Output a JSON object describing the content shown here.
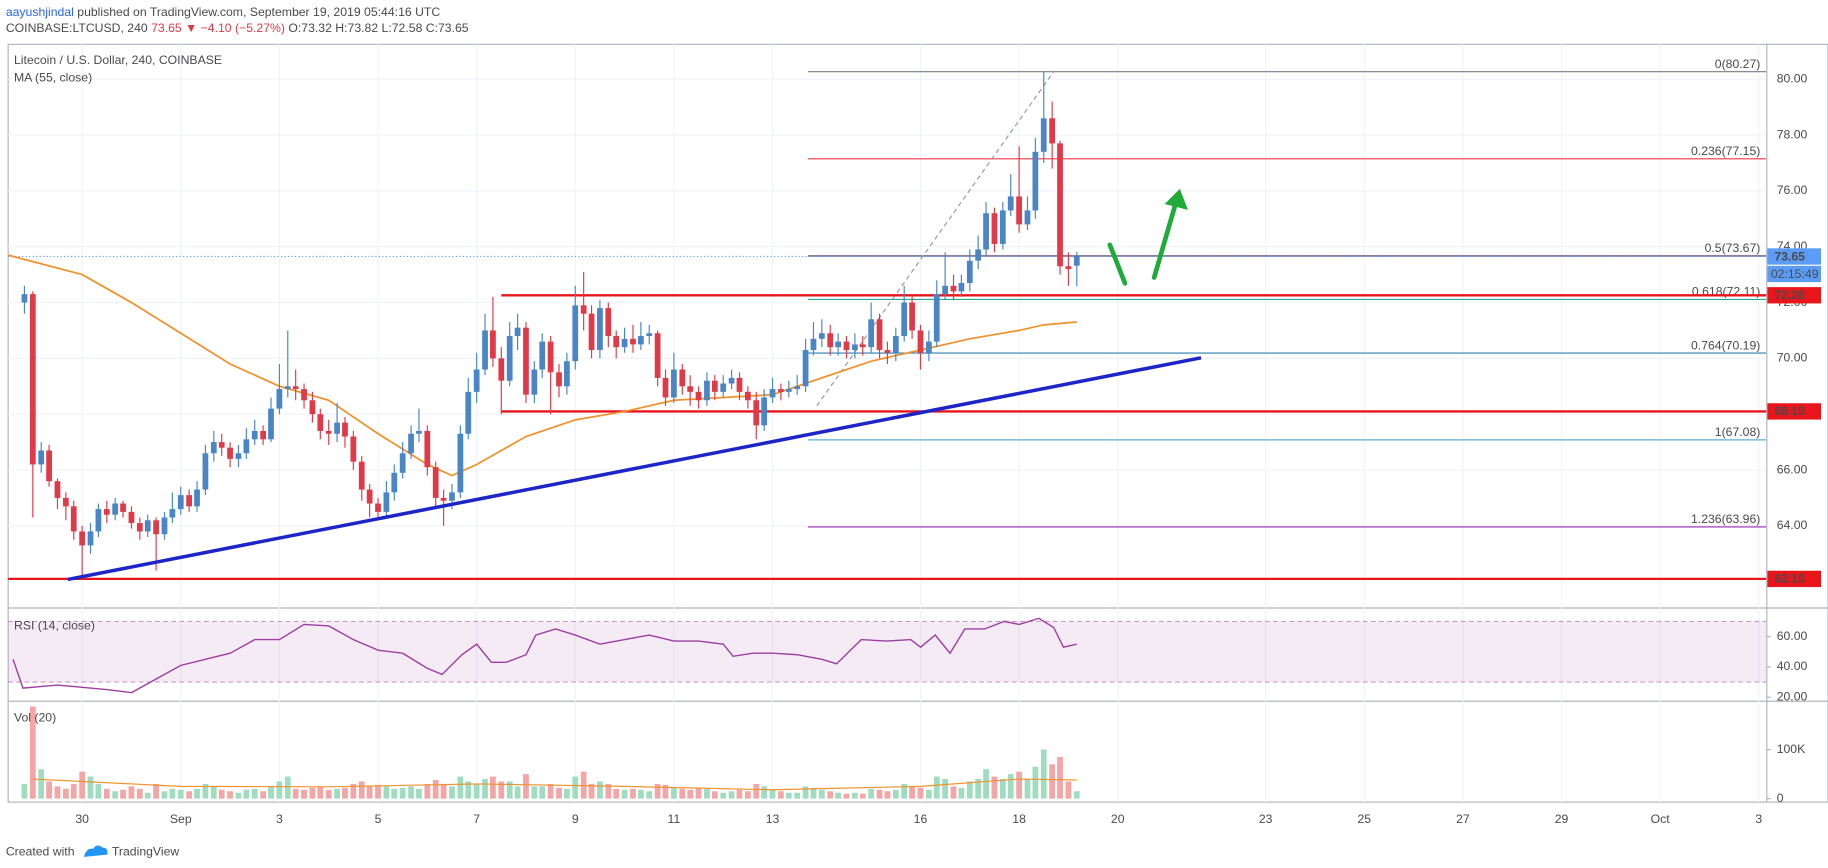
{
  "chart_data": {
    "type": "candlestick",
    "header": {
      "author": "aayushjindal",
      "published": " published on TradingView.com, September 19, 2019 05:44:16 UTC",
      "symbol": "COINBASE:LTCUSD, 240",
      "change": " 73.65 ▼ −4.10 (−5.27%)",
      "ohlc": " O:73.32 H:73.82 L:72.58 C:73.65"
    },
    "title": "Litecoin / U.S. Dollar, 240, COINBASE",
    "ma_label": "MA (55, close)",
    "footer": {
      "created": "Created with",
      "brand": "TradingView"
    },
    "grid": true,
    "up_color": "#4a86c5",
    "down_color": "#e03a48",
    "xlim": [
      -3.5,
      32.15
    ],
    "xticks": [
      {
        "value": -2,
        "label": "30"
      },
      {
        "value": 0,
        "label": "Sep"
      },
      {
        "value": 2,
        "label": "3"
      },
      {
        "value": 4,
        "label": "5"
      },
      {
        "value": 6,
        "label": "7"
      },
      {
        "value": 8,
        "label": "9"
      },
      {
        "value": 10,
        "label": "11"
      },
      {
        "value": 12,
        "label": "13"
      },
      {
        "value": 15,
        "label": "16"
      },
      {
        "value": 17,
        "label": "18"
      },
      {
        "value": 19,
        "label": "20"
      },
      {
        "value": 22,
        "label": "23"
      },
      {
        "value": 24,
        "label": "25"
      },
      {
        "value": 26,
        "label": "27"
      },
      {
        "value": 28,
        "label": "29"
      },
      {
        "value": 30,
        "label": "Oct"
      },
      {
        "value": 32,
        "label": "3"
      }
    ],
    "ylim": [
      61.12,
      81.25
    ],
    "yticks": [
      {
        "value": 64,
        "label": "64.00"
      },
      {
        "value": 66,
        "label": "66.00"
      },
      {
        "value": 68,
        "label": "68.00"
      },
      {
        "value": 70,
        "label": "70.00"
      },
      {
        "value": 72,
        "label": "72.00"
      },
      {
        "value": 74,
        "label": "74.00"
      },
      {
        "value": 76,
        "label": "76.00"
      },
      {
        "value": 78,
        "label": "78.00"
      },
      {
        "value": 80,
        "label": "80.00"
      }
    ],
    "x": [
      -3.17,
      -3,
      -2.83,
      -2.67,
      -2.5,
      -2.33,
      -2.17,
      -2,
      -1.83,
      -1.67,
      -1.5,
      -1.33,
      -1.17,
      -1,
      -0.83,
      -0.67,
      -0.5,
      -0.33,
      -0.17,
      0,
      0.17,
      0.33,
      0.5,
      0.67,
      0.83,
      1,
      1.17,
      1.33,
      1.5,
      1.67,
      1.83,
      2,
      2.17,
      2.33,
      2.5,
      2.67,
      2.83,
      3,
      3.17,
      3.33,
      3.5,
      3.67,
      3.83,
      4,
      4.17,
      4.33,
      4.5,
      4.67,
      4.83,
      5,
      5.17,
      5.33,
      5.5,
      5.67,
      5.83,
      6,
      6.17,
      6.33,
      6.5,
      6.67,
      6.83,
      7,
      7.17,
      7.33,
      7.5,
      7.67,
      7.83,
      8,
      8.17,
      8.33,
      8.5,
      8.67,
      8.83,
      9,
      9.17,
      9.33,
      9.5,
      9.67,
      9.83,
      10,
      10.17,
      10.33,
      10.5,
      10.67,
      10.83,
      11,
      11.17,
      11.33,
      11.5,
      11.67,
      11.83,
      12,
      12.17,
      12.33,
      12.5,
      12.67,
      12.83,
      13,
      13.17,
      13.33,
      13.5,
      13.67,
      13.83,
      14,
      14.17,
      14.33,
      14.5,
      14.67,
      14.83,
      15,
      15.17,
      15.33,
      15.5,
      15.67,
      15.83,
      16,
      16.17,
      16.33,
      16.5,
      16.67,
      16.83,
      17,
      17.17,
      17.33,
      17.5,
      17.67,
      17.83,
      18,
      18.17
    ],
    "ohlc": [
      [
        72.0,
        72.6,
        71.6,
        72.3
      ],
      [
        72.3,
        72.4,
        64.3,
        66.2
      ],
      [
        66.2,
        67.0,
        65.9,
        66.7
      ],
      [
        66.7,
        66.9,
        65.4,
        65.6
      ],
      [
        65.6,
        65.7,
        64.6,
        65.0
      ],
      [
        65.0,
        65.2,
        64.2,
        64.7
      ],
      [
        64.7,
        64.9,
        63.5,
        63.8
      ],
      [
        63.8,
        64.0,
        62.1,
        63.3
      ],
      [
        63.3,
        64.1,
        63.0,
        63.8
      ],
      [
        63.8,
        64.8,
        63.6,
        64.6
      ],
      [
        64.6,
        64.9,
        64.1,
        64.4
      ],
      [
        64.4,
        65.0,
        64.2,
        64.8
      ],
      [
        64.8,
        64.9,
        64.3,
        64.5
      ],
      [
        64.5,
        64.7,
        63.9,
        64.1
      ],
      [
        64.1,
        64.3,
        63.5,
        63.8
      ],
      [
        63.8,
        64.4,
        63.6,
        64.2
      ],
      [
        64.2,
        64.3,
        62.4,
        63.7
      ],
      [
        63.7,
        64.5,
        63.5,
        64.3
      ],
      [
        64.3,
        65.2,
        64.1,
        64.6
      ],
      [
        64.6,
        65.4,
        64.4,
        65.1
      ],
      [
        65.1,
        65.3,
        64.5,
        64.7
      ],
      [
        64.7,
        65.6,
        64.5,
        65.3
      ],
      [
        65.3,
        66.9,
        65.1,
        66.6
      ],
      [
        66.6,
        67.4,
        66.3,
        67.0
      ],
      [
        67.0,
        67.3,
        66.5,
        66.8
      ],
      [
        66.8,
        67.0,
        66.1,
        66.4
      ],
      [
        66.4,
        66.9,
        66.1,
        66.6
      ],
      [
        66.6,
        67.5,
        66.4,
        67.1
      ],
      [
        67.1,
        67.8,
        66.9,
        67.4
      ],
      [
        67.4,
        67.6,
        66.9,
        67.1
      ],
      [
        67.1,
        68.6,
        67.0,
        68.2
      ],
      [
        68.2,
        69.8,
        68.0,
        68.9
      ],
      [
        68.9,
        71.0,
        68.6,
        69.0
      ],
      [
        69.0,
        69.6,
        68.5,
        68.9
      ],
      [
        68.9,
        69.1,
        68.2,
        68.5
      ],
      [
        68.5,
        68.8,
        67.7,
        68.0
      ],
      [
        68.0,
        68.2,
        67.1,
        67.4
      ],
      [
        67.4,
        67.8,
        66.9,
        67.3
      ],
      [
        67.3,
        68.4,
        67.0,
        67.7
      ],
      [
        67.7,
        67.9,
        66.8,
        67.2
      ],
      [
        67.2,
        67.4,
        66.0,
        66.3
      ],
      [
        66.3,
        66.5,
        64.9,
        65.3
      ],
      [
        65.3,
        65.5,
        64.3,
        64.8
      ],
      [
        64.8,
        65.0,
        64.2,
        64.5
      ],
      [
        64.5,
        65.6,
        64.3,
        65.2
      ],
      [
        65.2,
        66.2,
        64.9,
        65.9
      ],
      [
        65.9,
        67.0,
        65.7,
        66.6
      ],
      [
        66.6,
        67.6,
        66.4,
        67.3
      ],
      [
        67.3,
        68.2,
        67.0,
        67.4
      ],
      [
        67.4,
        67.6,
        65.8,
        66.1
      ],
      [
        66.1,
        66.3,
        64.6,
        65.0
      ],
      [
        65.0,
        65.3,
        64.0,
        64.9
      ],
      [
        64.9,
        65.5,
        64.6,
        65.2
      ],
      [
        65.2,
        67.6,
        65.0,
        67.3
      ],
      [
        67.3,
        69.3,
        67.1,
        68.8
      ],
      [
        68.8,
        70.2,
        68.4,
        69.6
      ],
      [
        69.6,
        71.6,
        69.4,
        71.0
      ],
      [
        71.0,
        72.2,
        69.7,
        70.0
      ],
      [
        70.0,
        70.4,
        68.0,
        69.2
      ],
      [
        69.2,
        71.3,
        69.0,
        70.8
      ],
      [
        70.8,
        71.6,
        70.3,
        71.1
      ],
      [
        71.1,
        71.3,
        68.4,
        68.7
      ],
      [
        68.7,
        69.9,
        68.4,
        69.6
      ],
      [
        69.6,
        70.9,
        69.3,
        70.6
      ],
      [
        70.6,
        70.8,
        68.0,
        69.5
      ],
      [
        69.5,
        69.8,
        68.6,
        69.0
      ],
      [
        69.0,
        70.2,
        68.7,
        69.9
      ],
      [
        69.9,
        72.6,
        69.6,
        71.9
      ],
      [
        71.9,
        73.1,
        71.0,
        71.6
      ],
      [
        71.6,
        71.9,
        70.0,
        70.3
      ],
      [
        70.3,
        72.1,
        70.0,
        71.8
      ],
      [
        71.8,
        72.0,
        70.4,
        70.8
      ],
      [
        70.8,
        71.0,
        70.0,
        70.4
      ],
      [
        70.4,
        71.1,
        70.2,
        70.7
      ],
      [
        70.7,
        71.2,
        70.2,
        70.5
      ],
      [
        70.5,
        71.3,
        70.3,
        70.8
      ],
      [
        70.8,
        71.2,
        70.5,
        70.9
      ],
      [
        70.9,
        71.0,
        69.0,
        69.3
      ],
      [
        69.3,
        69.6,
        68.3,
        68.6
      ],
      [
        68.6,
        70.2,
        68.4,
        69.6
      ],
      [
        69.6,
        69.8,
        68.7,
        69.0
      ],
      [
        69.0,
        69.4,
        68.3,
        68.8
      ],
      [
        68.8,
        69.0,
        68.2,
        68.5
      ],
      [
        68.5,
        69.5,
        68.3,
        69.2
      ],
      [
        69.2,
        69.4,
        68.5,
        68.8
      ],
      [
        68.8,
        69.4,
        68.6,
        69.1
      ],
      [
        69.1,
        69.6,
        68.9,
        69.3
      ],
      [
        69.3,
        69.5,
        68.5,
        68.8
      ],
      [
        68.8,
        69.0,
        68.2,
        68.5
      ],
      [
        68.5,
        68.8,
        67.1,
        67.6
      ],
      [
        67.6,
        68.9,
        67.4,
        68.6
      ],
      [
        68.6,
        69.3,
        68.4,
        68.9
      ],
      [
        68.9,
        69.1,
        68.5,
        68.8
      ],
      [
        68.8,
        69.2,
        68.6,
        68.9
      ],
      [
        68.9,
        69.4,
        68.7,
        69.0
      ],
      [
        69.0,
        70.7,
        68.8,
        70.3
      ],
      [
        70.3,
        71.3,
        70.1,
        70.7
      ],
      [
        70.7,
        71.4,
        70.4,
        70.9
      ],
      [
        70.9,
        71.2,
        70.1,
        70.4
      ],
      [
        70.4,
        70.9,
        70.1,
        70.6
      ],
      [
        70.6,
        70.8,
        70.0,
        70.3
      ],
      [
        70.3,
        70.9,
        70.0,
        70.5
      ],
      [
        70.5,
        70.8,
        70.1,
        70.4
      ],
      [
        70.4,
        72.0,
        70.2,
        71.4
      ],
      [
        71.4,
        71.6,
        70.0,
        70.3
      ],
      [
        70.3,
        70.6,
        69.8,
        70.2
      ],
      [
        70.2,
        71.1,
        69.9,
        70.8
      ],
      [
        70.8,
        72.6,
        70.6,
        72.0
      ],
      [
        72.0,
        72.3,
        70.7,
        71.0
      ],
      [
        71.0,
        71.2,
        69.6,
        70.2
      ],
      [
        70.2,
        71.0,
        69.9,
        70.6
      ],
      [
        70.6,
        72.8,
        70.4,
        72.3
      ],
      [
        72.3,
        73.8,
        72.1,
        72.6
      ],
      [
        72.6,
        73.0,
        72.1,
        72.4
      ],
      [
        72.4,
        73.0,
        72.2,
        72.7
      ],
      [
        72.7,
        73.9,
        72.4,
        73.5
      ],
      [
        73.5,
        74.4,
        73.2,
        73.9
      ],
      [
        73.9,
        75.6,
        73.7,
        75.2
      ],
      [
        75.2,
        75.4,
        73.8,
        74.1
      ],
      [
        74.1,
        75.6,
        73.9,
        75.3
      ],
      [
        75.3,
        76.6,
        75.1,
        75.8
      ],
      [
        75.8,
        77.6,
        74.5,
        74.8
      ],
      [
        74.8,
        75.8,
        74.6,
        75.3
      ],
      [
        75.3,
        77.9,
        75.0,
        77.4
      ],
      [
        77.4,
        80.27,
        77.0,
        78.6
      ],
      [
        78.6,
        79.2,
        76.8,
        77.7
      ],
      [
        77.7,
        77.8,
        73.0,
        73.3
      ],
      [
        73.3,
        73.8,
        72.6,
        73.2
      ],
      [
        73.32,
        73.82,
        72.58,
        73.65
      ]
    ],
    "ma": {
      "color": "#f0922b",
      "x": [
        -3.5,
        -2,
        -1,
        0,
        1,
        2,
        3,
        4,
        5,
        5.5,
        6,
        7,
        8,
        9,
        10,
        11,
        12,
        13,
        14,
        15,
        16,
        17,
        17.5,
        18.17
      ],
      "values": [
        73.7,
        73.0,
        72.0,
        70.9,
        69.8,
        69.0,
        68.5,
        67.3,
        66.2,
        65.8,
        66.2,
        67.2,
        67.8,
        68.1,
        68.5,
        68.6,
        68.7,
        69.3,
        69.9,
        70.3,
        70.7,
        71.0,
        71.2,
        71.3
      ]
    },
    "trendline": {
      "color": "#1d24c8",
      "x": [
        -2.29,
        20.69
      ],
      "values": [
        62.08,
        70.02
      ]
    },
    "levels": [
      {
        "value": 72.26,
        "label": "72.26",
        "start": 6.5
      },
      {
        "value": 68.1,
        "label": "68.10",
        "start": 6.5
      },
      {
        "value": 62.1,
        "label": "62.10",
        "start": -3.5
      }
    ],
    "level_color": "#e8151b",
    "last_price": {
      "value": 73.65,
      "label": "73.65",
      "countdown": "02:15:49",
      "color": "#5b9cf6"
    },
    "fib": {
      "start": 12.72,
      "trend": {
        "x": [
          12.9,
          17.7
        ],
        "values": [
          68.3,
          80.27
        ]
      },
      "levels": [
        {
          "value": 80.27,
          "label": "0(80.27)",
          "color": "#787b86"
        },
        {
          "value": 77.15,
          "label": "0.236(77.15)",
          "color": "#f23645"
        },
        {
          "value": 73.67,
          "label": "0.5(73.67)",
          "color": "#4a2a55"
        },
        {
          "value": 72.11,
          "label": "0.618(72.11)",
          "color": "#22ab94"
        },
        {
          "value": 70.19,
          "label": "0.764(70.19)",
          "color": "#2b7fb0"
        },
        {
          "value": 67.08,
          "label": "1(67.08)",
          "color": "#57b0d8"
        },
        {
          "value": 63.96,
          "label": "1.236(63.96)",
          "color": "#9c27b0"
        }
      ]
    },
    "rsi": {
      "label": "RSI (14, close)",
      "color": "#9c3fa0",
      "ylim": [
        18.5,
        77.7
      ],
      "band": [
        30,
        70
      ],
      "yticks": [
        {
          "value": 60,
          "label": "60.00"
        },
        {
          "value": 40,
          "label": "40.00"
        },
        {
          "value": 20,
          "label": "20.00"
        }
      ],
      "x": [
        -3.4,
        -3.2,
        -2.5,
        -1.5,
        -1,
        -0.5,
        0,
        0.5,
        1,
        1.5,
        2,
        2.5,
        3,
        3.5,
        4,
        4.5,
        5,
        5.3,
        5.7,
        6,
        6.3,
        6.6,
        7,
        7.2,
        7.6,
        8,
        8.5,
        9,
        9.5,
        10,
        10.5,
        11,
        11.2,
        11.6,
        12,
        12.5,
        13,
        13.3,
        13.8,
        14.3,
        14.8,
        15,
        15.3,
        15.6,
        15.9,
        16.3,
        16.7,
        17,
        17.4,
        17.7,
        17.9,
        18.17
      ],
      "values": [
        45,
        26,
        28,
        25,
        23,
        32,
        41,
        45,
        49,
        58,
        58,
        68,
        67,
        58,
        51,
        49,
        39,
        35,
        48,
        55,
        43,
        43,
        48,
        61,
        65,
        61,
        55,
        58,
        61,
        57,
        57,
        55,
        47,
        49,
        49,
        48,
        45,
        42,
        58,
        57,
        58,
        53,
        61,
        49,
        65,
        65,
        70,
        68,
        72,
        66,
        53,
        55
      ]
    },
    "volume": {
      "label": "Vol (20)",
      "up_color": "#9fdcc0",
      "down_color": "#f4a6a6",
      "ylim": [
        -7100,
        195000
      ],
      "yticks": [
        {
          "value": 100000,
          "label": "100K"
        },
        0
      ],
      "values": [
        30000,
        188000,
        60000,
        35000,
        25000,
        20000,
        30000,
        55000,
        45000,
        30000,
        20000,
        15000,
        18000,
        25000,
        20000,
        12000,
        30000,
        15000,
        20000,
        18000,
        15000,
        20000,
        30000,
        25000,
        18000,
        15000,
        12000,
        18000,
        20000,
        15000,
        25000,
        35000,
        45000,
        20000,
        18000,
        22000,
        25000,
        18000,
        20000,
        22000,
        30000,
        35000,
        25000,
        28000,
        25000,
        20000,
        22000,
        25000,
        20000,
        30000,
        38000,
        30000,
        25000,
        45000,
        35000,
        30000,
        40000,
        45000,
        35000,
        35000,
        25000,
        50000,
        25000,
        25000,
        30000,
        22000,
        20000,
        45000,
        55000,
        30000,
        35000,
        30000,
        20000,
        18000,
        20000,
        18000,
        15000,
        30000,
        28000,
        22000,
        20000,
        18000,
        22000,
        20000,
        15000,
        12000,
        15000,
        18000,
        15000,
        30000,
        25000,
        18000,
        15000,
        12000,
        12000,
        25000,
        22000,
        18000,
        15000,
        12000,
        10000,
        12000,
        10000,
        20000,
        18000,
        15000,
        18000,
        30000,
        25000,
        22000,
        18000,
        45000,
        40000,
        25000,
        22000,
        35000,
        40000,
        60000,
        45000,
        40000,
        50000,
        55000,
        40000,
        65000,
        100000,
        70000,
        85000,
        35000,
        15000
      ],
      "ma": {
        "color": "#f0922b",
        "x": [
          -3,
          0,
          3,
          6,
          9,
          12,
          15,
          17,
          18.17
        ],
        "values": [
          40000,
          25000,
          24000,
          30000,
          25000,
          18000,
          25000,
          40000,
          38000
        ]
      }
    }
  }
}
